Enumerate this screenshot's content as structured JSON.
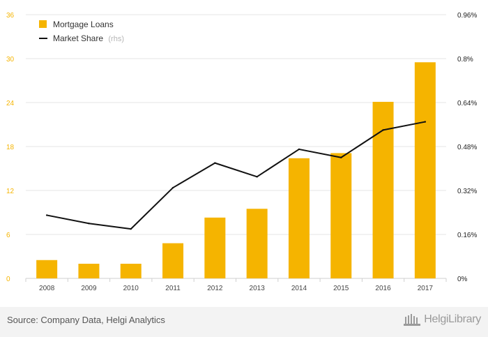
{
  "chart_data": {
    "type": "bar+line",
    "categories": [
      "2008",
      "2009",
      "2010",
      "2011",
      "2012",
      "2013",
      "2014",
      "2015",
      "2016",
      "2017"
    ],
    "series": [
      {
        "name": "Mortgage Loans",
        "type": "bar",
        "axis": "left",
        "color": "#f5b400",
        "values": [
          2.5,
          2.0,
          2.0,
          4.8,
          8.3,
          9.5,
          16.4,
          17.1,
          24.1,
          29.5
        ]
      },
      {
        "name": "Market Share",
        "name_suffix": "(rhs)",
        "type": "line",
        "axis": "right",
        "color": "#111111",
        "values": [
          0.23,
          0.2,
          0.18,
          0.33,
          0.42,
          0.37,
          0.47,
          0.44,
          0.54,
          0.57
        ]
      }
    ],
    "y_left": {
      "min": 0,
      "max": 36,
      "ticks": [
        "0",
        "6",
        "12",
        "18",
        "24",
        "30",
        "36"
      ],
      "color": "#f5b400"
    },
    "y_right": {
      "min": 0,
      "max": 0.96,
      "ticks": [
        "0%",
        "0.16%",
        "0.32%",
        "0.48%",
        "0.64%",
        "0.8%",
        "0.96%"
      ]
    },
    "grid": true,
    "legend": "top-left"
  },
  "footer": {
    "source": "Source: Company Data, Helgi Analytics",
    "logo_text": "HelgiLibrary"
  }
}
